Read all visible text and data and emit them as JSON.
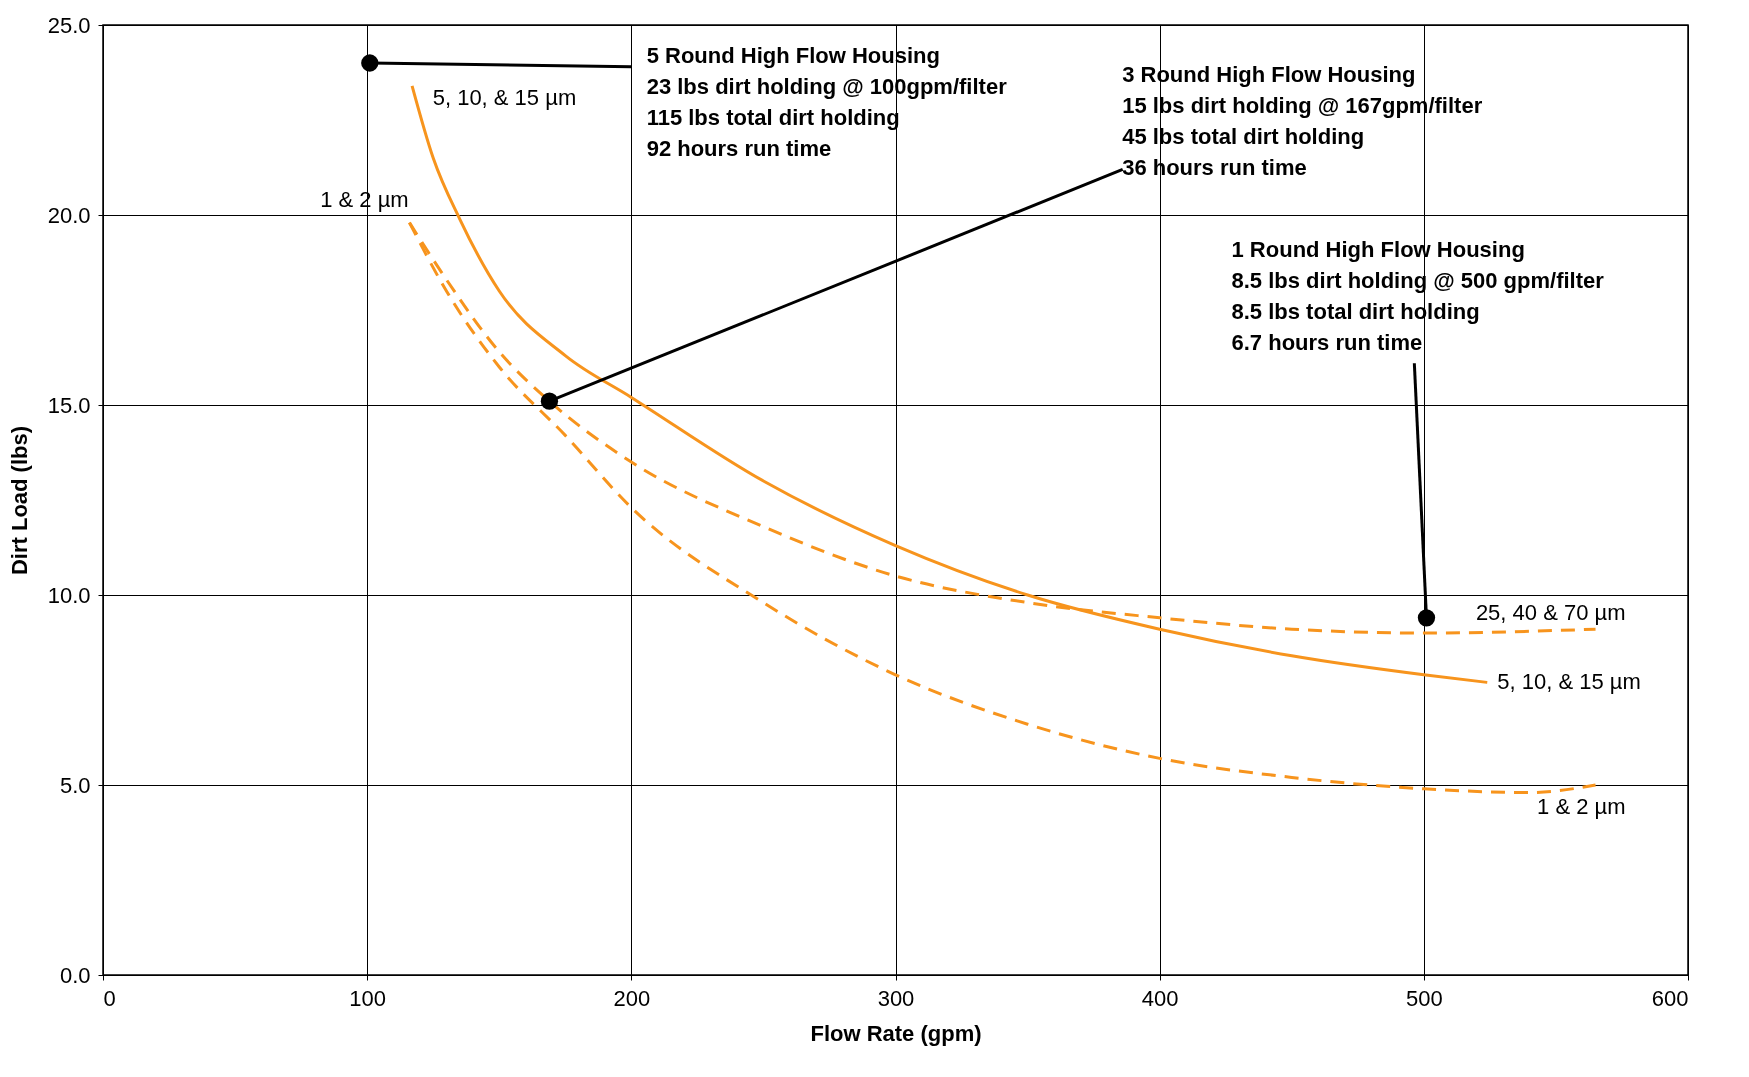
{
  "chart_data": {
    "type": "line",
    "xlabel": "Flow Rate (gpm)",
    "ylabel": "Dirt Load (lbs)",
    "xlim": [
      0,
      600
    ],
    "xticks": [
      0,
      100,
      200,
      300,
      400,
      500,
      600
    ],
    "ylim": [
      0,
      25
    ],
    "yticks": [
      {
        "value": 0,
        "label": "0.0"
      },
      {
        "value": 5,
        "label": "5.0"
      },
      {
        "value": 10,
        "label": "10.0"
      },
      {
        "value": 15,
        "label": "15.0"
      },
      {
        "value": 20,
        "label": "20.0"
      },
      {
        "value": 25,
        "label": "25.0"
      }
    ],
    "grid": true,
    "series": [
      {
        "name": "5, 10, & 15 µm",
        "color": "#f7941d",
        "line_style": "solid",
        "x": [
          117,
          125,
          135,
          150,
          175,
          200,
          250,
          300,
          350,
          400,
          450,
          500,
          524
        ],
        "values": [
          23.4,
          21.5,
          19.9,
          18.0,
          16.3,
          15.2,
          13.0,
          11.3,
          10.0,
          9.1,
          8.4,
          7.9,
          7.7
        ]
      },
      {
        "name": "25, 40 & 70 µm",
        "color": "#f7941d",
        "line_style": "dashed",
        "x": [
          116,
          130,
          150,
          169,
          200,
          250,
          300,
          350,
          400,
          450,
          500,
          565
        ],
        "values": [
          19.8,
          18.3,
          16.4,
          15.1,
          13.5,
          11.8,
          10.5,
          9.8,
          9.4,
          9.1,
          9.0,
          9.1
        ]
      },
      {
        "name": "1 & 2 µm",
        "color": "#f7941d",
        "line_style": "dashed",
        "x": [
          116,
          130,
          150,
          175,
          200,
          250,
          300,
          350,
          400,
          450,
          500,
          540,
          565
        ],
        "values": [
          19.8,
          18.0,
          16.0,
          14.2,
          12.3,
          9.8,
          7.9,
          6.6,
          5.7,
          5.2,
          4.9,
          4.8,
          5.0
        ]
      },
      {
        "type": "line",
        "color": "#000000",
        "line_style": "solid",
        "x": [
          101,
          200
        ],
        "values": [
          24.0,
          23.9
        ]
      },
      {
        "type": "line",
        "color": "#000000",
        "line_style": "solid",
        "x": [
          169,
          386
        ],
        "values": [
          15.1,
          21.2
        ]
      },
      {
        "type": "line",
        "color": "#000000",
        "line_style": "solid",
        "x": [
          496.4,
          501
        ],
        "values": [
          16.1,
          9.4
        ]
      },
      {
        "type": "scatter",
        "color": "#000000",
        "marker": "circle",
        "x": [
          101,
          169,
          501
        ],
        "values": [
          24.0,
          15.1,
          9.4
        ]
      }
    ],
    "annotations": [
      "5 Round High Flow Housing\n23 lbs dirt holding @ 100gpm/filter\n115 lbs total dirt holding\n92 hours run time",
      "3 Round High Flow Housing\n15 lbs dirt holding @ 167gpm/filter\n45 lbs total dirt holding\n36 hours run time",
      "1 Round High Flow Housing\n8.5 lbs dirt holding @ 500 gpm/filter\n8.5 lbs total dirt holding\n6.7 hours run time",
      "5, 10, & 15 µm",
      "1 & 2 µm"
    ]
  }
}
